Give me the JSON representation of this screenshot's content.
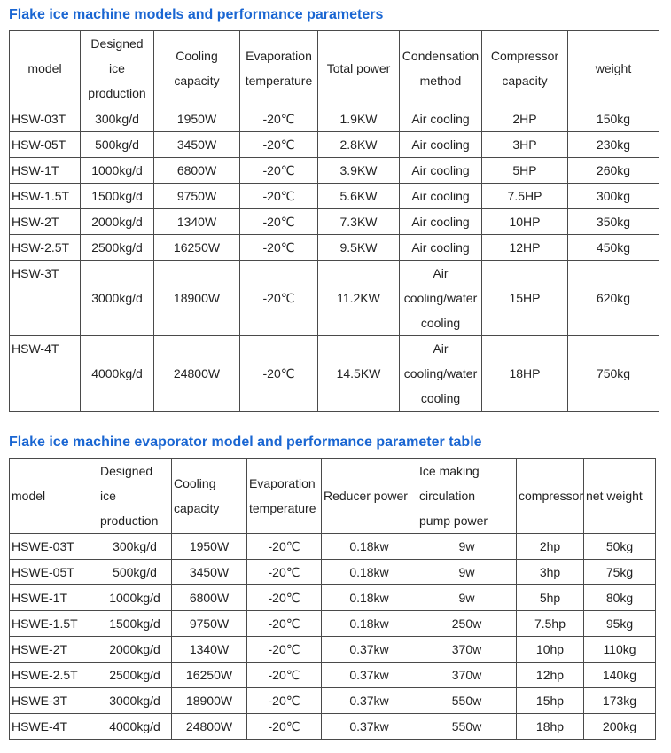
{
  "page": {
    "title_color": "#1a66d2",
    "border_color": "#4a4a4a",
    "text_color": "#222222"
  },
  "tables": [
    {
      "title": "Flake ice machine models and performance parameters",
      "headers": [
        "model",
        "Designed\nice\nproduction",
        "Cooling\ncapacity",
        "Evaporation\ntemperature",
        "Total power",
        "Condensation\nmethod",
        "Compressor\ncapacity",
        "weight"
      ],
      "rows": [
        [
          "HSW-03T",
          "300kg/d",
          "1950W",
          "-20℃",
          "1.9KW",
          "Air cooling",
          "2HP",
          "150kg"
        ],
        [
          "HSW-05T",
          "500kg/d",
          "3450W",
          "-20℃",
          "2.8KW",
          "Air cooling",
          "3HP",
          "230kg"
        ],
        [
          "HSW-1T",
          "1000kg/d",
          "6800W",
          "-20℃",
          "3.9KW",
          "Air cooling",
          "5HP",
          "260kg"
        ],
        [
          "HSW-1.5T",
          "1500kg/d",
          "9750W",
          "-20℃",
          "5.6KW",
          "Air cooling",
          "7.5HP",
          "300kg"
        ],
        [
          "HSW-2T",
          "2000kg/d",
          "1340W",
          "-20℃",
          "7.3KW",
          "Air cooling",
          "10HP",
          "350kg"
        ],
        [
          "HSW-2.5T",
          "2500kg/d",
          "16250W",
          "-20℃",
          "9.5KW",
          "Air cooling",
          "12HP",
          "450kg"
        ],
        [
          "HSW-3T",
          "3000kg/d",
          "18900W",
          "-20℃",
          "11.2KW",
          "Air\ncooling/water\ncooling",
          "15HP",
          "620kg"
        ],
        [
          "HSW-4T",
          "4000kg/d",
          "24800W",
          "-20℃",
          "14.5KW",
          "Air\ncooling/water\ncooling",
          "18HP",
          "750kg"
        ]
      ]
    },
    {
      "title": "Flake ice machine evaporator model and performance parameter table",
      "headers": [
        "model",
        "Designed\nice\nproduction",
        "Cooling\ncapacity",
        "Evaporation\ntemperature",
        "Reducer power",
        "Ice making\ncirculation\npump power",
        "compressor",
        "net weight"
      ],
      "rows": [
        [
          "HSWE-03T",
          "300kg/d",
          "1950W",
          "-20℃",
          "0.18kw",
          "9w",
          "2hp",
          "50kg"
        ],
        [
          "HSWE-05T",
          "500kg/d",
          "3450W",
          "-20℃",
          "0.18kw",
          "9w",
          "3hp",
          "75kg"
        ],
        [
          "HSWE-1T",
          "1000kg/d",
          "6800W",
          "-20℃",
          "0.18kw",
          "9w",
          "5hp",
          "80kg"
        ],
        [
          "HSWE-1.5T",
          "1500kg/d",
          "9750W",
          "-20℃",
          "0.18kw",
          "250w",
          "7.5hp",
          "95kg"
        ],
        [
          "HSWE-2T",
          "2000kg/d",
          "1340W",
          "-20℃",
          "0.37kw",
          "370w",
          "10hp",
          "110kg"
        ],
        [
          "HSWE-2.5T",
          "2500kg/d",
          "16250W",
          "-20℃",
          "0.37kw",
          "370w",
          "12hp",
          "140kg"
        ],
        [
          "HSWE-3T",
          "3000kg/d",
          "18900W",
          "-20℃",
          "0.37kw",
          "550w",
          "15hp",
          "173kg"
        ],
        [
          "HSWE-4T",
          "4000kg/d",
          "24800W",
          "-20℃",
          "0.37kw",
          "550w",
          "18hp",
          "200kg"
        ]
      ]
    }
  ]
}
